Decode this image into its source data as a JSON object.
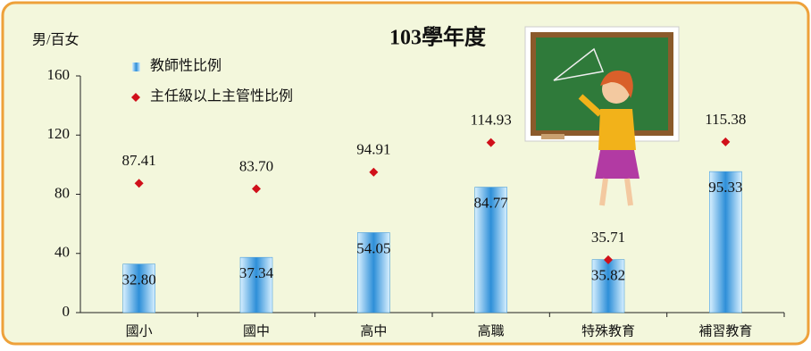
{
  "chart_data": {
    "type": "bar",
    "title": "103學年度",
    "y_label": "男/百女",
    "categories": [
      "國小",
      "國中",
      "高中",
      "高職",
      "特殊教育",
      "補習教育"
    ],
    "series": [
      {
        "name": "教師性比例",
        "color": "#2e8fd8",
        "marker": "bar",
        "values": [
          32.8,
          37.34,
          54.05,
          84.77,
          35.82,
          95.33
        ],
        "value_labels": [
          "32.80",
          "37.34",
          "54.05",
          "84.77",
          "35.82",
          "95.33"
        ]
      },
      {
        "name": "主任級以上主管性比例",
        "color": "#d0101a",
        "marker": "diamond",
        "values": [
          87.41,
          83.7,
          94.91,
          114.93,
          35.71,
          115.38
        ],
        "value_labels": [
          "87.41",
          "83.70",
          "94.91",
          "114.93",
          "35.71",
          "115.38"
        ]
      }
    ],
    "ylim": [
      0,
      160
    ],
    "yticks": [
      0,
      40,
      80,
      120,
      160
    ]
  }
}
